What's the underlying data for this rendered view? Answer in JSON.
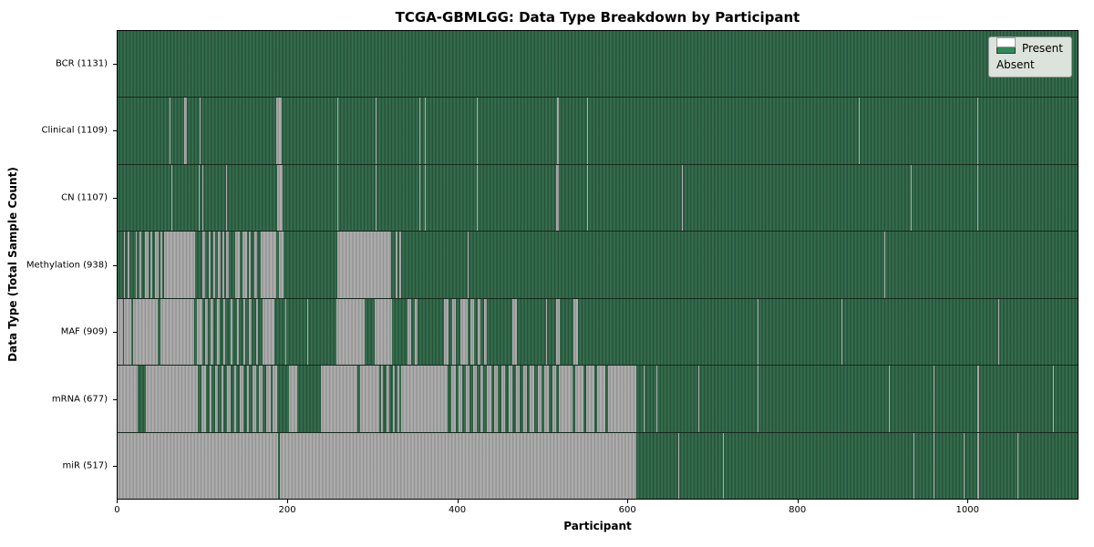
{
  "chart_data": {
    "type": "heatmap",
    "title": "TCGA-GBMLGG: Data Type Breakdown by Participant",
    "xlabel": "Participant",
    "ylabel": "Data Type (Total Sample Count)",
    "x_ticks": [
      0,
      200,
      400,
      600,
      800,
      1000
    ],
    "xlim": [
      0,
      1131
    ],
    "n_participants": 1131,
    "grid": false,
    "legend": {
      "position": "upper right",
      "items": [
        {
          "label": "Present",
          "color": "#2e8b57"
        },
        {
          "label": "Absent",
          "color": "#ffffff"
        }
      ]
    },
    "rows": [
      {
        "name": "BCR",
        "label": "BCR (1131)",
        "present_total": 1131,
        "absent_segments": []
      },
      {
        "name": "Clinical",
        "label": "Clinical (1109)",
        "present_total": 1109,
        "absent_segments": [
          [
            61,
            62
          ],
          [
            78,
            82
          ],
          [
            97,
            98
          ],
          [
            108,
            109
          ],
          [
            187,
            193
          ],
          [
            259,
            260
          ],
          [
            304,
            305
          ],
          [
            356,
            357
          ],
          [
            362,
            363
          ],
          [
            423,
            424
          ],
          [
            518,
            520
          ],
          [
            553,
            554
          ],
          [
            873,
            874
          ],
          [
            1013,
            1014
          ]
        ]
      },
      {
        "name": "CN",
        "label": "CN (1107)",
        "present_total": 1107,
        "absent_segments": [
          [
            63,
            64
          ],
          [
            96,
            97
          ],
          [
            100,
            101
          ],
          [
            108,
            109
          ],
          [
            128,
            129
          ],
          [
            188,
            194
          ],
          [
            259,
            260
          ],
          [
            304,
            305
          ],
          [
            356,
            357
          ],
          [
            362,
            363
          ],
          [
            423,
            424
          ],
          [
            517,
            520
          ],
          [
            553,
            554
          ],
          [
            665,
            666
          ],
          [
            934,
            935
          ],
          [
            1013,
            1014
          ]
        ]
      },
      {
        "name": "Methylation",
        "label": "Methylation (938)",
        "present_total": 938,
        "absent_segments": [
          [
            7,
            9
          ],
          [
            12,
            14
          ],
          [
            21,
            23
          ],
          [
            26,
            28
          ],
          [
            32,
            36
          ],
          [
            39,
            41
          ],
          [
            44,
            48
          ],
          [
            50,
            53
          ],
          [
            55,
            91
          ],
          [
            100,
            103
          ],
          [
            107,
            110
          ],
          [
            113,
            115
          ],
          [
            118,
            121
          ],
          [
            124,
            126
          ],
          [
            128,
            131
          ],
          [
            139,
            144
          ],
          [
            147,
            152
          ],
          [
            155,
            157
          ],
          [
            161,
            164
          ],
          [
            169,
            187
          ],
          [
            190,
            196
          ],
          [
            259,
            322
          ],
          [
            328,
            330
          ],
          [
            332,
            334
          ],
          [
            412,
            413
          ],
          [
            903,
            904
          ]
        ]
      },
      {
        "name": "MAF",
        "label": "MAF (909)",
        "present_total": 909,
        "absent_segments": [
          [
            0,
            6
          ],
          [
            8,
            16
          ],
          [
            18,
            47
          ],
          [
            50,
            90
          ],
          [
            93,
            100
          ],
          [
            103,
            106
          ],
          [
            110,
            113
          ],
          [
            117,
            120
          ],
          [
            125,
            127
          ],
          [
            133,
            135
          ],
          [
            141,
            143
          ],
          [
            148,
            150
          ],
          [
            155,
            158
          ],
          [
            163,
            165
          ],
          [
            171,
            185
          ],
          [
            198,
            199
          ],
          [
            223,
            224
          ],
          [
            258,
            291
          ],
          [
            303,
            323
          ],
          [
            342,
            346
          ],
          [
            350,
            353
          ],
          [
            385,
            390
          ],
          [
            394,
            399
          ],
          [
            404,
            412
          ],
          [
            416,
            420
          ],
          [
            424,
            428
          ],
          [
            432,
            435
          ],
          [
            465,
            470
          ],
          [
            505,
            506
          ],
          [
            517,
            521
          ],
          [
            537,
            542
          ],
          [
            754,
            755
          ],
          [
            853,
            854
          ],
          [
            1038,
            1039
          ]
        ]
      },
      {
        "name": "mRNA",
        "label": "mRNA (677)",
        "present_total": 677,
        "absent_segments": [
          [
            0,
            24
          ],
          [
            33,
            95
          ],
          [
            99,
            104
          ],
          [
            108,
            111
          ],
          [
            115,
            118
          ],
          [
            122,
            125
          ],
          [
            129,
            133
          ],
          [
            137,
            140
          ],
          [
            144,
            148
          ],
          [
            152,
            155
          ],
          [
            159,
            163
          ],
          [
            167,
            171
          ],
          [
            175,
            180
          ],
          [
            183,
            188
          ],
          [
            202,
            212
          ],
          [
            239,
            282
          ],
          [
            286,
            308
          ],
          [
            310,
            313
          ],
          [
            317,
            320
          ],
          [
            324,
            327
          ],
          [
            330,
            332
          ],
          [
            334,
            389
          ],
          [
            393,
            398
          ],
          [
            402,
            406
          ],
          [
            410,
            415
          ],
          [
            419,
            423
          ],
          [
            427,
            431
          ],
          [
            435,
            440
          ],
          [
            444,
            448
          ],
          [
            452,
            457
          ],
          [
            461,
            465
          ],
          [
            469,
            474
          ],
          [
            478,
            482
          ],
          [
            486,
            491
          ],
          [
            495,
            499
          ],
          [
            503,
            508
          ],
          [
            512,
            517
          ],
          [
            520,
            536
          ],
          [
            539,
            549
          ],
          [
            552,
            562
          ],
          [
            565,
            575
          ],
          [
            578,
            611
          ],
          [
            620,
            621
          ],
          [
            635,
            636
          ],
          [
            684,
            685
          ],
          [
            754,
            755
          ],
          [
            909,
            910
          ],
          [
            961,
            962
          ],
          [
            1013,
            1015
          ],
          [
            1102,
            1103
          ]
        ]
      },
      {
        "name": "miR",
        "label": "miR (517)",
        "present_total": 517,
        "absent_segments": [
          [
            0,
            189
          ],
          [
            191,
            611
          ],
          [
            661,
            662
          ],
          [
            713,
            714
          ],
          [
            938,
            939
          ],
          [
            961,
            962
          ],
          [
            997,
            998
          ],
          [
            1013,
            1015
          ],
          [
            1060,
            1061
          ]
        ]
      }
    ]
  }
}
